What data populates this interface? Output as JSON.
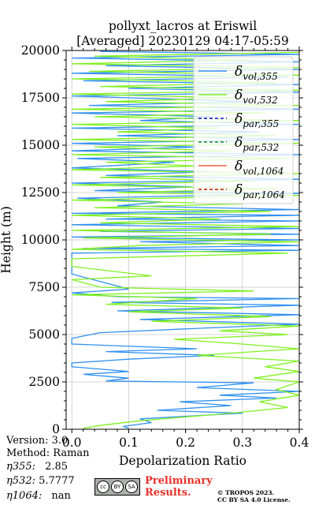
{
  "chart_data": {
    "type": "line",
    "title_line1": "pollyxt_lacros at Eriswil",
    "title_line2": "[Averaged] 20230129 04:17-05:59",
    "xlabel": "Depolarization Ratio",
    "ylabel": "Height (m)",
    "xlim": [
      -0.01,
      0.4
    ],
    "ylim": [
      0,
      20000
    ],
    "xticks": [
      "0.0",
      "0.1",
      "0.2",
      "0.3",
      "0.4"
    ],
    "yticks": [
      "0",
      "2500",
      "5000",
      "7500",
      "10000",
      "12500",
      "15000",
      "17500",
      "20000"
    ],
    "grid": true,
    "legend_placement": "top-right",
    "series": [
      {
        "name": "δvol,355",
        "legend_main": "δ",
        "legend_sub": "vol,355",
        "color": "#3090f0",
        "dash": "solid",
        "points": [
          [
            0.1,
            50
          ],
          [
            0.09,
            150
          ],
          [
            0.14,
            350
          ],
          [
            0.12,
            550
          ],
          [
            0.3,
            850
          ],
          [
            0.15,
            1000
          ],
          [
            0.28,
            1250
          ],
          [
            0.19,
            1450
          ],
          [
            0.36,
            1650
          ],
          [
            0.26,
            1800
          ],
          [
            0.4,
            2000
          ],
          [
            0.22,
            2200
          ],
          [
            0.32,
            2450
          ],
          [
            0.06,
            2550
          ],
          [
            0.1,
            2700
          ],
          [
            0.02,
            2900
          ],
          [
            0.1,
            3050
          ],
          [
            0.0,
            3300
          ],
          [
            0.0,
            3500
          ],
          [
            0.1,
            3700
          ],
          [
            0.25,
            3900
          ],
          [
            0.06,
            4100
          ],
          [
            0.22,
            4250
          ],
          [
            0.0,
            4500
          ],
          [
            0.0,
            4800
          ],
          [
            0.05,
            5100
          ],
          [
            0.2,
            5300
          ],
          [
            0.4,
            5550
          ],
          [
            0.12,
            5800
          ],
          [
            0.4,
            6050
          ],
          [
            0.08,
            6250
          ],
          [
            0.4,
            6550
          ],
          [
            0.07,
            6700
          ],
          [
            0.4,
            6900
          ],
          [
            0.08,
            7000
          ],
          [
            0.0,
            7200
          ],
          [
            0.1,
            7400
          ],
          [
            0.0,
            8200
          ],
          [
            0.0,
            9300
          ],
          [
            0.4,
            9450
          ],
          [
            0.02,
            9550
          ],
          [
            0.4,
            9700
          ],
          [
            0.12,
            9900
          ],
          [
            0.4,
            10000
          ],
          [
            0.0,
            10150
          ],
          [
            0.4,
            10300
          ],
          [
            0.05,
            10450
          ],
          [
            0.4,
            10600
          ],
          [
            0.0,
            10800
          ],
          [
            0.4,
            11000
          ],
          [
            0.06,
            11100
          ],
          [
            0.4,
            11300
          ],
          [
            0.0,
            11400
          ],
          [
            0.4,
            11600
          ],
          [
            0.08,
            11800
          ],
          [
            0.16,
            12000
          ],
          [
            0.01,
            12200
          ],
          [
            0.4,
            12450
          ],
          [
            0.04,
            12600
          ],
          [
            0.21,
            12800
          ],
          [
            0.0,
            13000
          ],
          [
            0.4,
            13200
          ],
          [
            0.06,
            13400
          ],
          [
            0.24,
            13600
          ],
          [
            0.0,
            13800
          ],
          [
            0.18,
            14100
          ],
          [
            0.01,
            14300
          ],
          [
            0.4,
            14500
          ],
          [
            0.0,
            14700
          ],
          [
            0.22,
            14900
          ],
          [
            0.0,
            15100
          ],
          [
            0.4,
            15300
          ],
          [
            0.08,
            15500
          ],
          [
            0.33,
            15700
          ],
          [
            0.0,
            15900
          ],
          [
            0.4,
            16100
          ],
          [
            0.12,
            16300
          ],
          [
            0.25,
            16500
          ],
          [
            0.0,
            16700
          ],
          [
            0.4,
            16900
          ],
          [
            0.03,
            17100
          ],
          [
            0.31,
            17300
          ],
          [
            0.0,
            17600
          ],
          [
            0.4,
            17800
          ],
          [
            0.1,
            18000
          ],
          [
            0.4,
            18200
          ],
          [
            0.02,
            18400
          ],
          [
            0.38,
            18600
          ],
          [
            0.0,
            18800
          ],
          [
            0.4,
            19000
          ],
          [
            0.06,
            19200
          ],
          [
            0.4,
            19400
          ],
          [
            0.0,
            19600
          ],
          [
            0.4,
            19800
          ],
          [
            0.05,
            19950
          ]
        ]
      },
      {
        "name": "δvol,532",
        "legend_main": "δ",
        "legend_sub": "vol,532",
        "color": "#80f020",
        "dash": "solid",
        "points": [
          [
            0.02,
            50
          ],
          [
            0.05,
            200
          ],
          [
            0.12,
            450
          ],
          [
            0.2,
            650
          ],
          [
            0.28,
            850
          ],
          [
            0.38,
            1150
          ],
          [
            0.33,
            1450
          ],
          [
            0.4,
            1800
          ],
          [
            0.36,
            2100
          ],
          [
            0.4,
            2500
          ],
          [
            0.32,
            2700
          ],
          [
            0.4,
            3050
          ],
          [
            0.34,
            3300
          ],
          [
            0.4,
            3600
          ],
          [
            0.22,
            3900
          ],
          [
            0.4,
            4250
          ],
          [
            0.3,
            4500
          ],
          [
            0.18,
            4750
          ],
          [
            0.38,
            5000
          ],
          [
            0.26,
            5200
          ],
          [
            0.4,
            5450
          ],
          [
            0.14,
            5700
          ],
          [
            0.35,
            5950
          ],
          [
            0.1,
            6200
          ],
          [
            0.3,
            6400
          ],
          [
            0.06,
            6600
          ],
          [
            0.22,
            6900
          ],
          [
            0.0,
            7100
          ],
          [
            0.32,
            7300
          ],
          [
            0.05,
            7500
          ],
          [
            0.0,
            7900
          ],
          [
            0.14,
            8100
          ],
          [
            0.0,
            8600
          ],
          [
            0.0,
            9000
          ],
          [
            0.38,
            9300
          ],
          [
            0.0,
            9500
          ],
          [
            0.12,
            9700
          ],
          [
            0.4,
            9900
          ],
          [
            0.02,
            10100
          ],
          [
            0.35,
            10300
          ],
          [
            0.0,
            10500
          ],
          [
            0.4,
            10700
          ],
          [
            0.05,
            10900
          ],
          [
            0.26,
            11100
          ],
          [
            0.0,
            11300
          ],
          [
            0.35,
            11500
          ],
          [
            0.04,
            11700
          ],
          [
            0.3,
            11900
          ],
          [
            0.0,
            12100
          ],
          [
            0.4,
            12350
          ],
          [
            0.08,
            12500
          ],
          [
            0.36,
            12700
          ],
          [
            0.0,
            12900
          ],
          [
            0.32,
            13100
          ],
          [
            0.05,
            13300
          ],
          [
            0.4,
            13500
          ],
          [
            0.0,
            13700
          ],
          [
            0.22,
            13900
          ],
          [
            0.06,
            14100
          ],
          [
            0.38,
            14300
          ],
          [
            0.0,
            14500
          ],
          [
            0.28,
            14700
          ],
          [
            0.04,
            14900
          ],
          [
            0.4,
            15100
          ],
          [
            0.0,
            15300
          ],
          [
            0.36,
            15500
          ],
          [
            0.08,
            15700
          ],
          [
            0.26,
            15900
          ],
          [
            0.0,
            16100
          ],
          [
            0.4,
            16300
          ],
          [
            0.04,
            16500
          ],
          [
            0.34,
            16700
          ],
          [
            0.0,
            16900
          ],
          [
            0.4,
            17100
          ],
          [
            0.06,
            17300
          ],
          [
            0.3,
            17500
          ],
          [
            0.0,
            17700
          ],
          [
            0.4,
            17900
          ],
          [
            0.05,
            18100
          ],
          [
            0.36,
            18300
          ],
          [
            0.0,
            18500
          ],
          [
            0.4,
            18700
          ],
          [
            0.03,
            18900
          ],
          [
            0.4,
            19100
          ],
          [
            0.0,
            19300
          ],
          [
            0.32,
            19500
          ],
          [
            0.04,
            19700
          ],
          [
            0.4,
            19900
          ]
        ]
      },
      {
        "name": "δpar,355",
        "legend_main": "δ",
        "legend_sub": "par,355",
        "color": "#1010c0",
        "dash": "dashed",
        "points": []
      },
      {
        "name": "δpar,532",
        "legend_main": "δ",
        "legend_sub": "par,532",
        "color": "#108040",
        "dash": "dashed",
        "points": []
      },
      {
        "name": "δvol,1064",
        "legend_main": "δ",
        "legend_sub": "vol,1064",
        "color": "#f06040",
        "dash": "solid",
        "points": []
      },
      {
        "name": "δpar,1064",
        "legend_main": "δ",
        "legend_sub": "par,1064",
        "color": "#c01010",
        "dash": "dashed",
        "points": []
      }
    ]
  },
  "info": {
    "version": "Version: 3.0",
    "method": "Method: Raman",
    "eta355_label": "η355:",
    "eta355_value": "2.85",
    "eta532_label": "η532:",
    "eta532_value": "5.7777",
    "eta1064_label": "η1064:",
    "eta1064_value": "nan"
  },
  "footer": {
    "preliminary_line1": "Preliminary",
    "preliminary_line2": "Results.",
    "copyright_line1": "© TROPOS 2023.",
    "copyright_line2": "CC BY SA 4.0 License.",
    "cc_label": "cc",
    "by_label": "BY",
    "sa_label": "SA"
  }
}
